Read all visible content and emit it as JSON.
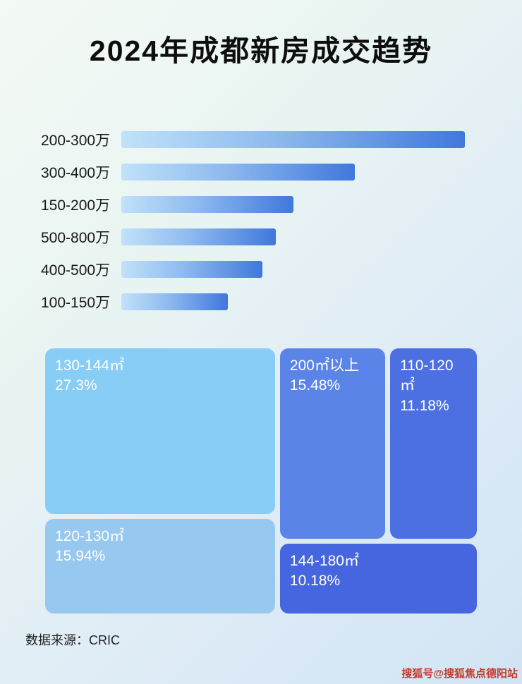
{
  "page": {
    "title": "2024年成都新房成交趋势",
    "source_label": "数据来源：CRIC",
    "watermark": "搜狐号@搜狐焦点德阳站"
  },
  "colors": {
    "bar_gradient_start": "#c0e2f9",
    "bar_gradient_end": "#4078dc",
    "background_start": "#f4faf5",
    "background_end": "#d2e4f4",
    "treemap_text": "#ffffff",
    "watermark_text": "#c23b2e"
  },
  "chart_data": [
    {
      "type": "bar",
      "orientation": "horizontal",
      "title": "2024年成都新房成交趋势",
      "categories": [
        "200-300万",
        "300-400万",
        "150-200万",
        "500-800万",
        "400-500万",
        "100-150万"
      ],
      "values": [
        100,
        68,
        50,
        45,
        41,
        31
      ],
      "note": "no numeric axis shown; values are relative bar lengths as percent of the longest bar",
      "xlabel": "",
      "ylabel": "",
      "grid": false,
      "legend": false
    },
    {
      "type": "treemap",
      "title": "",
      "items": [
        {
          "label": "130-144㎡",
          "percent": "27.3%",
          "value": 27.3,
          "color": "#87cdf5"
        },
        {
          "label": "120-130㎡",
          "percent": "15.94%",
          "value": 15.94,
          "color": "#97c8f0"
        },
        {
          "label": "200㎡以上",
          "percent": "15.48%",
          "value": 15.48,
          "color": "#5a84e8"
        },
        {
          "label": "110-120㎡",
          "percent": "11.18%",
          "value": 11.18,
          "color": "#4c70e2"
        },
        {
          "label": "144-180㎡",
          "percent": "10.18%",
          "value": 10.18,
          "color": "#4566de"
        }
      ]
    }
  ]
}
